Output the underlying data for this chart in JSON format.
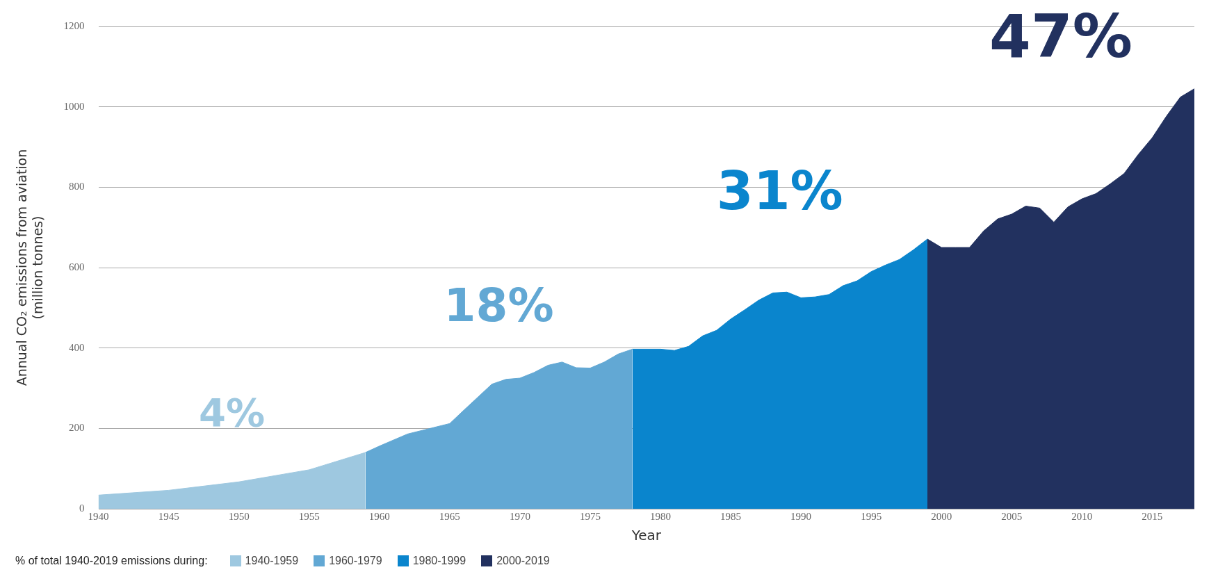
{
  "chart_data": {
    "type": "area",
    "xlabel": "Year",
    "ylabel": "Annual CO₂ emissions from aviation (million tonnes)",
    "legend_title": "% of total 1940-2019 emissions during:",
    "xlim": [
      1940,
      2018
    ],
    "xticks": [
      1940,
      1945,
      1950,
      1955,
      1960,
      1965,
      1970,
      1975,
      1980,
      1985,
      1990,
      1995,
      2000,
      2005,
      2010,
      2015
    ],
    "ylim": [
      0,
      1200
    ],
    "yticks": [
      0,
      200,
      400,
      600,
      800,
      1000,
      1200
    ],
    "grid": "y",
    "legend": "bottom",
    "annotations": [
      "4%",
      "18%",
      "31%",
      "47%"
    ],
    "series": [
      {
        "name": "1940-1959",
        "color": "#9ec8e0",
        "x": [
          1940,
          1945,
          1950,
          1955,
          1959
        ],
        "values": [
          34,
          46,
          67,
          97,
          140
        ]
      },
      {
        "name": "1960-1979",
        "color": "#62a8d4",
        "x": [
          1959,
          1960,
          1962,
          1965,
          1966,
          1968,
          1969,
          1970,
          1971,
          1972,
          1973,
          1974,
          1975,
          1976,
          1977,
          1978
        ],
        "values": [
          140,
          156,
          186,
          212,
          245,
          310,
          322,
          325,
          339,
          357,
          365,
          351,
          350,
          365,
          385,
          397
        ]
      },
      {
        "name": "1980-1999",
        "color": "#0a85cd",
        "x": [
          1978,
          1980,
          1981,
          1982,
          1983,
          1984,
          1985,
          1986,
          1987,
          1988,
          1989,
          1990,
          1991,
          1992,
          1993,
          1994,
          1995,
          1996,
          1997,
          1998,
          1999
        ],
        "values": [
          397,
          397,
          394,
          404,
          430,
          444,
          472,
          495,
          519,
          537,
          539,
          525,
          527,
          533,
          555,
          567,
          590,
          606,
          620,
          644,
          671
        ]
      },
      {
        "name": "2000-2019",
        "color": "#22315f",
        "x": [
          1999,
          2000,
          2001,
          2002,
          2003,
          2004,
          2005,
          2006,
          2007,
          2008,
          2009,
          2010,
          2011,
          2012,
          2013,
          2014,
          2015,
          2016,
          2017,
          2018
        ],
        "values": [
          671,
          650,
          650,
          650,
          691,
          721,
          733,
          753,
          748,
          713,
          751,
          771,
          784,
          808,
          834,
          881,
          923,
          976,
          1024,
          1045
        ]
      }
    ]
  }
}
